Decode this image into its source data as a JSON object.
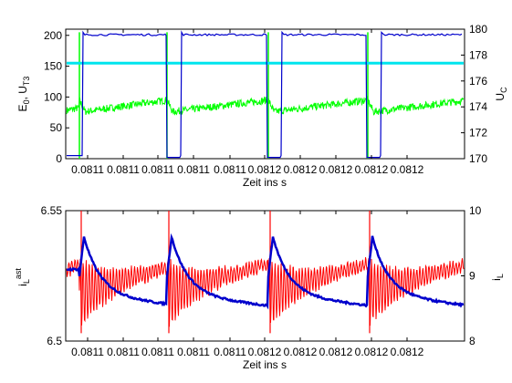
{
  "chart_data": [
    {
      "type": "line",
      "title": "",
      "xlabel": "Zeit ins s",
      "ylabel_left": {
        "main": "E",
        "sub1": "0",
        "mid": ", U",
        "sub2": "T3"
      },
      "ylabel_right": {
        "main": "U",
        "sub": "C"
      },
      "x_tick_labels": [
        "0.0811",
        "0.0811",
        "0.0811",
        "0.0811",
        "0.0811",
        "0.0812",
        "0.0812",
        "0.0812",
        "0.0812",
        "0.0812"
      ],
      "ylim_left": [
        0,
        210
      ],
      "y_ticks_left": [
        0,
        50,
        100,
        150,
        200
      ],
      "ylim_right": [
        170,
        180
      ],
      "y_ticks_right": [
        170,
        172,
        174,
        176,
        178,
        180
      ],
      "grid": false,
      "series": [
        {
          "color": "#0000cc",
          "axis": "left",
          "high": 200,
          "low": 2,
          "values_note": "square wave",
          "x": [
            0,
            0.085,
            0.095,
            0.4,
            0.41,
            0.52,
            0.53,
            0.83,
            0.84,
            0.94,
            1.0
          ],
          "y": [
            5,
            5,
            203,
            201,
            2,
            2,
            203,
            201,
            2,
            2,
            203
          ]
        },
        {
          "color": "#00e5ee",
          "axis": "left",
          "value": 155
        },
        {
          "color": "#00ff00",
          "axis": "left",
          "values_note": "sawtooth ~75-95 with spikes at switching"
        }
      ],
      "colors": {
        "blue": "#0000cc",
        "cyan": "#00e5ee",
        "green": "#00ff00"
      }
    },
    {
      "type": "line",
      "title": "",
      "xlabel": "Zeit ins s",
      "ylabel_left": {
        "main": "i",
        "sub": "L",
        "sup": "ast"
      },
      "ylabel_right": {
        "main": "i",
        "sub": "L"
      },
      "x_tick_labels": [
        "0.0811",
        "0.0811",
        "0.0811",
        "0.0811",
        "0.0811",
        "0.0812",
        "0.0812",
        "0.0812",
        "0.0812",
        "0.0812"
      ],
      "ylim_left": [
        6.5,
        6.55
      ],
      "y_ticks_left": [
        "6.5",
        "6.55"
      ],
      "ylim_right": [
        8,
        10
      ],
      "y_ticks_right": [
        8,
        9,
        10
      ],
      "grid": false,
      "series": [
        {
          "color": "#ff0000",
          "axis": "left",
          "values_note": "ringing oscillation after each switching event"
        },
        {
          "color": "#0000cc",
          "axis": "right",
          "values_note": "decaying sawtooth"
        }
      ],
      "colors": {
        "red": "#ff0000",
        "blue": "#0000cc"
      }
    }
  ]
}
